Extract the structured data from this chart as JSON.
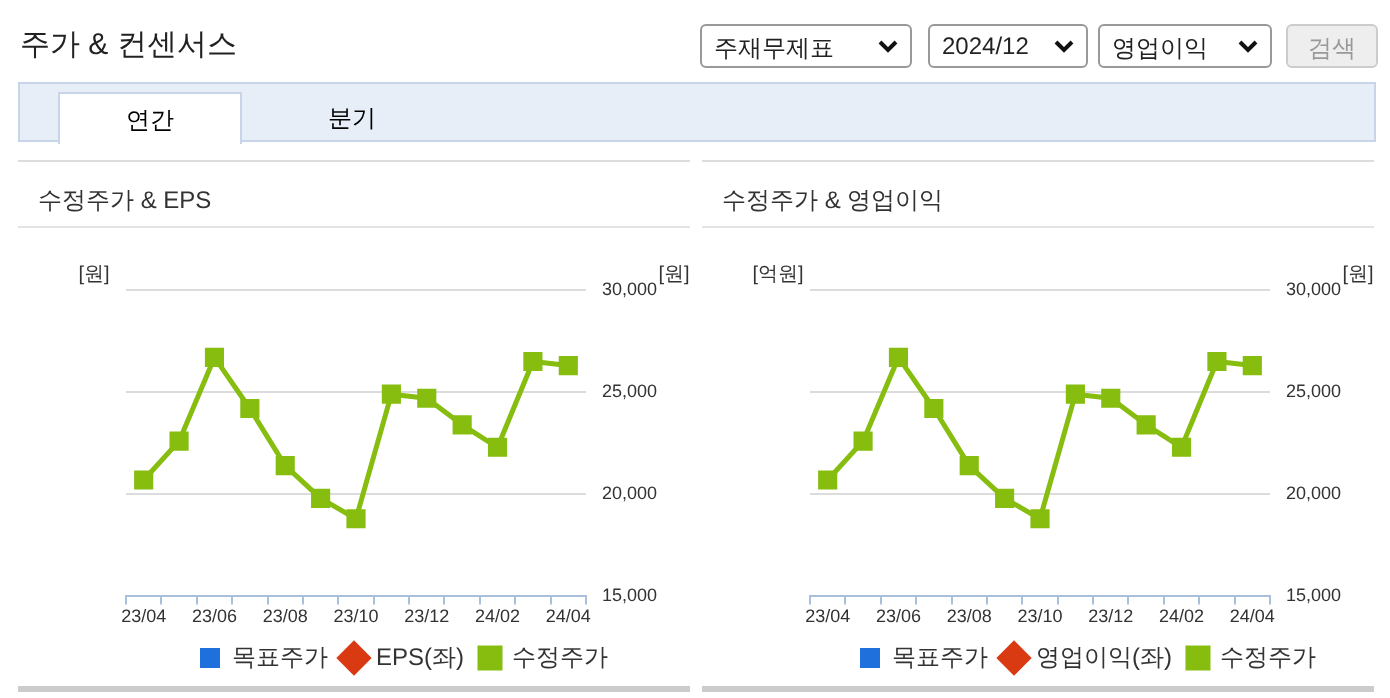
{
  "chart_data": [
    {
      "type": "other",
      "title": "주가 & 컨센서스",
      "annotations": [
        "주재무제표",
        "2024/12",
        "영업이익",
        "검색",
        "연간",
        "분기"
      ]
    },
    {
      "type": "line",
      "title": "수정주가 & EPS",
      "ylabel": "[원]",
      "y2label": "[원]",
      "categories": [
        "23/04",
        null,
        "23/06",
        null,
        "23/08",
        null,
        "23/10",
        null,
        "23/12",
        null,
        "24/02",
        null,
        "24/04"
      ],
      "series": [
        {
          "name": "목표주가",
          "type": "bar",
          "color": "#1f6fdc",
          "values": [
            null,
            null,
            null,
            null,
            null,
            null,
            null,
            null,
            null,
            null,
            null,
            null,
            null
          ]
        },
        {
          "name": "EPS(좌)",
          "color": "#d93a12",
          "marker": "diamond",
          "values": [
            null,
            null,
            null,
            null,
            null,
            null,
            null,
            null,
            null,
            null,
            null,
            null,
            null
          ]
        },
        {
          "name": "수정주가",
          "color": "#86bd0f",
          "axis": "y2",
          "marker": "square",
          "values": [
            20700,
            22600,
            26700,
            24200,
            21400,
            19800,
            18800,
            24900,
            24700,
            23400,
            22300,
            26500,
            26300
          ]
        }
      ],
      "y2lim": [
        15000,
        30000
      ],
      "y2ticks": [
        {
          "value": 15000,
          "label": "15,000"
        },
        {
          "value": 20000,
          "label": "20,000"
        },
        {
          "value": 25000,
          "label": "25,000"
        },
        {
          "value": 30000,
          "label": "30,000"
        }
      ],
      "grid": "y",
      "legend": "bottom"
    },
    {
      "type": "line",
      "title": "수정주가 & 영업이익",
      "ylabel": "[억원]",
      "y2label": "[원]",
      "categories": [
        "23/04",
        null,
        "23/06",
        null,
        "23/08",
        null,
        "23/10",
        null,
        "23/12",
        null,
        "24/02",
        null,
        "24/04"
      ],
      "series": [
        {
          "name": "목표주가",
          "type": "bar",
          "color": "#1f6fdc",
          "values": [
            null,
            null,
            null,
            null,
            null,
            null,
            null,
            null,
            null,
            null,
            null,
            null,
            null
          ]
        },
        {
          "name": "영업이익(좌)",
          "color": "#d93a12",
          "marker": "diamond",
          "values": [
            null,
            null,
            null,
            null,
            null,
            null,
            null,
            null,
            null,
            null,
            null,
            null,
            null
          ]
        },
        {
          "name": "수정주가",
          "color": "#86bd0f",
          "axis": "y2",
          "marker": "square",
          "values": [
            20700,
            22600,
            26700,
            24200,
            21400,
            19800,
            18800,
            24900,
            24700,
            23400,
            22300,
            26500,
            26300
          ]
        }
      ],
      "y2lim": [
        15000,
        30000
      ],
      "y2ticks": [
        {
          "value": 15000,
          "label": "15,000"
        },
        {
          "value": 20000,
          "label": "20,000"
        },
        {
          "value": 25000,
          "label": "25,000"
        },
        {
          "value": 30000,
          "label": "30,000"
        }
      ],
      "grid": "y",
      "legend": "bottom"
    }
  ]
}
